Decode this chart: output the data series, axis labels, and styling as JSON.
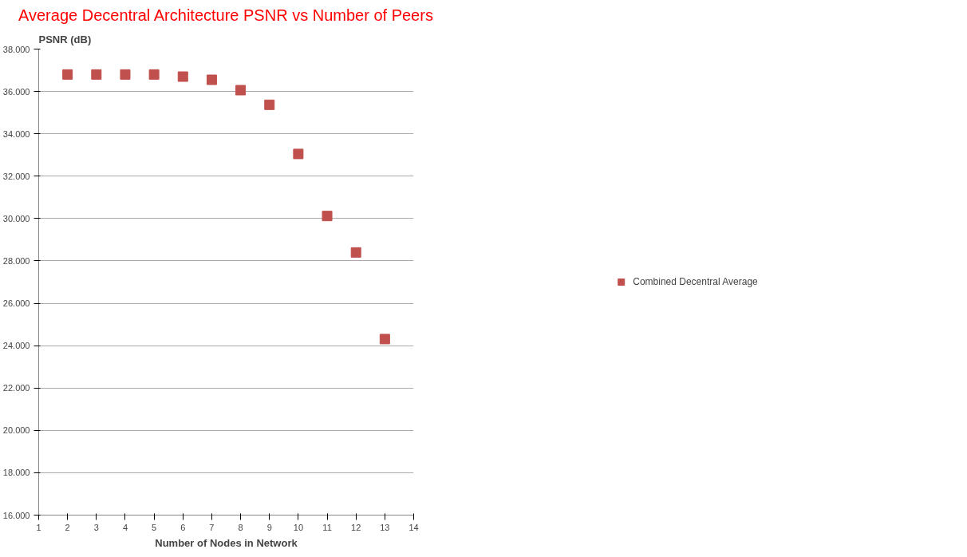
{
  "chart_data": {
    "type": "scatter",
    "title": "Average Decentral Architecture PSNR vs Number of Peers",
    "xlabel": "Number of Nodes in Network",
    "ylabel": "PSNR (dB)",
    "x": [
      2,
      3,
      4,
      5,
      6,
      7,
      8,
      9,
      10,
      11,
      12,
      13
    ],
    "series": [
      {
        "name": "Combined Decentral Average",
        "color": "#c0504d",
        "values": [
          36.8,
          36.8,
          36.8,
          36.8,
          36.7,
          36.55,
          36.06,
          35.37,
          33.05,
          30.12,
          28.4,
          24.31
        ]
      }
    ],
    "xlim": [
      1,
      14
    ],
    "xticks": [
      1,
      2,
      3,
      4,
      5,
      6,
      7,
      8,
      9,
      10,
      11,
      12,
      13,
      14
    ],
    "ylim": [
      16,
      38
    ],
    "yticks": [
      {
        "value": 16,
        "label": "16.000"
      },
      {
        "value": 18,
        "label": "18.000"
      },
      {
        "value": 20,
        "label": "20.000"
      },
      {
        "value": 22,
        "label": "22.000"
      },
      {
        "value": 24,
        "label": "24.000"
      },
      {
        "value": 26,
        "label": "26.000"
      },
      {
        "value": 28,
        "label": "28.000"
      },
      {
        "value": 30,
        "label": "30.000"
      },
      {
        "value": 32,
        "label": "32.000"
      },
      {
        "value": 34,
        "label": "34.000"
      },
      {
        "value": 36,
        "label": "36.000"
      },
      {
        "value": 38,
        "label": "38.000"
      }
    ],
    "grid": "y",
    "legend": "right",
    "marker": "square"
  }
}
